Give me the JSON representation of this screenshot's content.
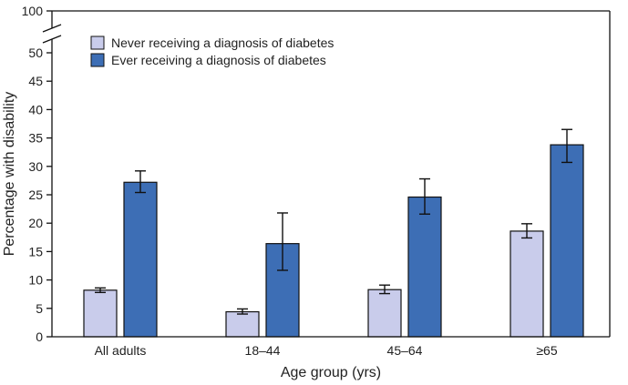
{
  "chart_data": {
    "type": "bar",
    "title": "",
    "xlabel": "Age group (yrs)",
    "ylabel": "Percentage with disability",
    "ylim": [
      0,
      100
    ],
    "axis_break": {
      "from": 50,
      "to": 100
    },
    "yticks": [
      0,
      5,
      10,
      15,
      20,
      25,
      30,
      35,
      40,
      45,
      50,
      100
    ],
    "categories": [
      "All adults",
      "18–44",
      "45–64",
      "≥65"
    ],
    "series": [
      {
        "name": "Never receiving a diagnosis of diabetes",
        "color": "#c9cceb",
        "values": [
          8.2,
          4.4,
          8.3,
          18.6
        ],
        "ci_low": [
          7.8,
          4.0,
          7.6,
          17.4
        ],
        "ci_high": [
          8.6,
          4.9,
          9.1,
          19.9
        ]
      },
      {
        "name": "Ever receiving a diagnosis of diabetes",
        "color": "#3d6eb5",
        "values": [
          27.2,
          16.4,
          24.6,
          33.8
        ],
        "ci_low": [
          25.4,
          11.7,
          21.6,
          30.7
        ],
        "ci_high": [
          29.2,
          21.8,
          27.8,
          36.5
        ]
      }
    ],
    "legend": "top-left",
    "grid": false
  }
}
